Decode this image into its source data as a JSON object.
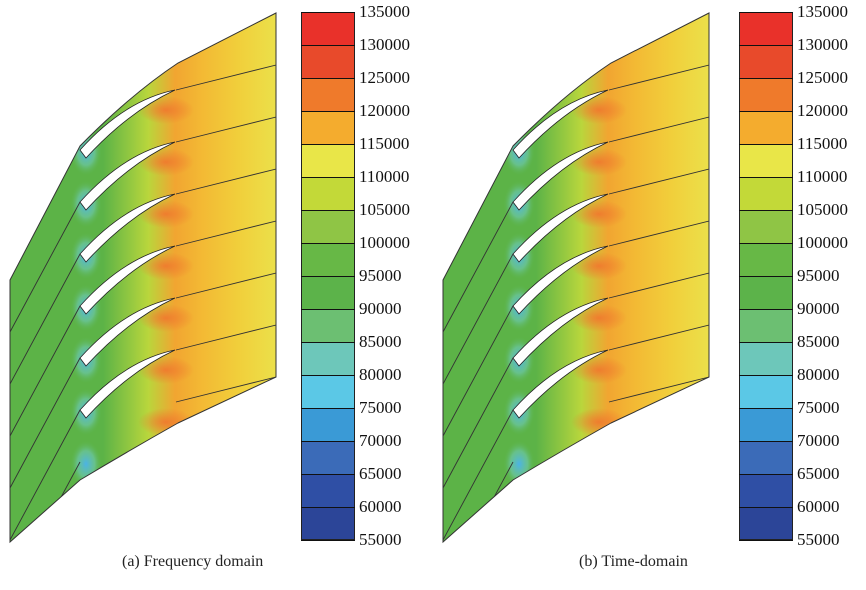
{
  "panels": [
    {
      "caption": "(a)  Frequency domain"
    },
    {
      "caption": "(b)  Time-domain"
    }
  ],
  "colorbar": {
    "labels": [
      "135000",
      "130000",
      "125000",
      "120000",
      "115000",
      "110000",
      "105000",
      "100000",
      "95000",
      "90000",
      "85000",
      "80000",
      "75000",
      "70000",
      "65000",
      "60000",
      "55000"
    ],
    "colors": [
      "#e9312a",
      "#e84a2b",
      "#ef7a2b",
      "#f4ac2e",
      "#e9e648",
      "#c3d938",
      "#8fc545",
      "#67b846",
      "#5cb34a",
      "#6cbf72",
      "#6dc7ba",
      "#5bc8e6",
      "#3a9ad6",
      "#3b6bb8",
      "#2f4fa5",
      "#2c4598"
    ]
  },
  "colors": {
    "inlet": "#5cb347",
    "outlet": "#f2c53a",
    "stagnation": "#f07a2e",
    "suction_low": "#4bb3e6"
  }
}
